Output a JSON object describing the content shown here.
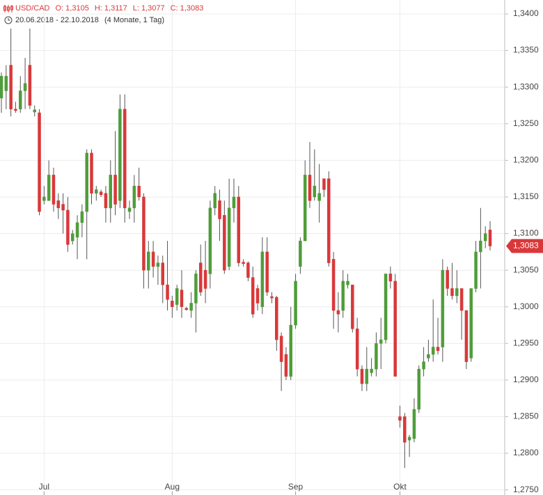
{
  "chart_data": {
    "type": "candlestick",
    "header": [
      "USD/CAD",
      "O: 1,3105",
      "H: 1,3117",
      "L: 1,3077",
      "C: 1,3083"
    ],
    "date_range": "20.06.2018 - 22.10.2018",
    "duration": "(4 Monate, 1 Tag)",
    "up_color": "#4f9d3a",
    "down_color": "#d9383a",
    "grid": true,
    "categories": [
      null,
      null,
      null,
      null,
      null,
      null,
      null,
      null,
      null,
      "Jul",
      null,
      null,
      null,
      null,
      null,
      null,
      null,
      null,
      null,
      null,
      null,
      null,
      null,
      null,
      null,
      null,
      null,
      null,
      null,
      null,
      null,
      null,
      null,
      null,
      null,
      null,
      "Aug",
      null,
      null,
      null,
      null,
      null,
      null,
      null,
      null,
      null,
      null,
      null,
      null,
      null,
      null,
      null,
      null,
      null,
      null,
      null,
      null,
      null,
      null,
      null,
      null,
      null,
      "Sep",
      null,
      null,
      null,
      null,
      null,
      null,
      null,
      null,
      null,
      null,
      null,
      null,
      null,
      null,
      null,
      null,
      null,
      null,
      null,
      null,
      null,
      "Okt",
      null,
      null,
      null,
      null,
      null,
      null,
      null,
      null,
      null,
      null,
      null,
      null,
      null,
      null,
      null,
      null,
      null,
      null,
      null
    ],
    "series": [
      {
        "name": "USD/CAD",
        "open": [
          1.3285,
          1.3295,
          1.333,
          1.327,
          1.327,
          1.3295,
          1.333,
          1.3266,
          1.3265,
          1.3145,
          1.3145,
          1.318,
          1.3145,
          1.314,
          1.3132,
          1.309,
          1.3095,
          1.3115,
          1.313,
          1.321,
          1.3155,
          1.3157,
          1.3155,
          1.3135,
          1.318,
          1.3145,
          1.327,
          1.313,
          1.3135,
          1.3165,
          1.315,
          1.305,
          1.3075,
          1.3055,
          1.306,
          1.303,
          1.3008,
          1.3003,
          1.3023,
          1.2998,
          1.2995,
          1.3005,
          1.306,
          1.305,
          1.3045,
          1.3135,
          1.3145,
          1.3125,
          1.3055,
          1.3135,
          1.315,
          1.3061,
          1.306,
          1.304,
          1.3025,
          1.3,
          1.3075,
          1.3014,
          1.3013,
          1.296,
          1.2935,
          1.2905,
          1.2975,
          1.3055,
          1.309,
          1.318,
          1.315,
          1.3145,
          1.3175,
          1.3175,
          1.3065,
          1.2995,
          1.2995,
          1.303,
          1.303,
          1.297,
          1.2915,
          1.2895,
          1.291,
          1.2915,
          1.295,
          1.2955,
          1.3045,
          1.3035,
          1.285,
          1.285,
          1.2818,
          1.282,
          1.286,
          1.2915,
          1.293,
          1.2935,
          1.2945,
          1.2945,
          1.305,
          1.3025,
          1.3015,
          1.3025,
          1.2995,
          1.293,
          1.3025,
          1.3075,
          1.309,
          1.3105
        ],
        "high": [
          1.332,
          1.333,
          1.338,
          1.328,
          1.3315,
          1.334,
          1.338,
          1.3275,
          1.327,
          1.3165,
          1.32,
          1.319,
          1.3155,
          1.3155,
          1.315,
          1.3105,
          1.3125,
          1.314,
          1.3215,
          1.3215,
          1.3165,
          1.316,
          1.3165,
          1.32,
          1.324,
          1.329,
          1.329,
          1.3145,
          1.318,
          1.319,
          1.3155,
          1.309,
          1.309,
          1.307,
          1.307,
          1.309,
          1.3015,
          1.303,
          1.305,
          1.3,
          1.302,
          1.305,
          1.3085,
          1.309,
          1.3145,
          1.3165,
          1.316,
          1.3145,
          1.3175,
          1.3175,
          1.3165,
          1.3065,
          1.3062,
          1.3055,
          1.303,
          1.3095,
          1.3095,
          1.302,
          1.3015,
          1.2965,
          1.2945,
          1.3,
          1.3045,
          1.3095,
          1.32,
          1.3225,
          1.3215,
          1.3195,
          1.3175,
          1.3185,
          1.3075,
          1.302,
          1.305,
          1.3045,
          1.303,
          1.2985,
          1.292,
          1.2945,
          1.293,
          1.2965,
          1.2985,
          1.3045,
          1.3055,
          1.3045,
          1.2865,
          1.2855,
          1.2825,
          1.2875,
          1.292,
          1.2945,
          1.2955,
          1.301,
          1.2985,
          1.3065,
          1.3055,
          1.306,
          1.305,
          1.3025,
          1.2995,
          1.3025,
          1.309,
          1.3135,
          1.311,
          1.3117
        ],
        "low": [
          1.3265,
          1.327,
          1.326,
          1.3265,
          1.3265,
          1.327,
          1.327,
          1.326,
          1.3125,
          1.314,
          1.3145,
          1.313,
          1.312,
          1.31,
          1.3075,
          1.3085,
          1.3065,
          1.3095,
          1.3065,
          1.314,
          1.3145,
          1.315,
          1.3115,
          1.3115,
          1.3125,
          1.3135,
          1.3115,
          1.312,
          1.3115,
          1.3145,
          1.3025,
          1.3025,
          1.304,
          1.303,
          1.3005,
          1.2995,
          1.2985,
          1.2995,
          1.2985,
          1.2995,
          1.2985,
          1.2965,
          1.3015,
          1.3005,
          1.3025,
          1.3125,
          1.309,
          1.3045,
          1.305,
          1.3115,
          1.3055,
          1.3055,
          1.3035,
          1.2985,
          1.2995,
          1.299,
          1.3015,
          1.3005,
          1.294,
          1.2885,
          1.29,
          1.29,
          1.297,
          1.3045,
          1.309,
          1.3135,
          1.3145,
          1.3115,
          1.315,
          1.3055,
          1.297,
          1.2965,
          1.2985,
          1.3025,
          1.2965,
          1.2905,
          1.2885,
          1.2885,
          1.2905,
          1.2905,
          1.2915,
          1.295,
          1.3025,
          1.2905,
          1.2835,
          1.278,
          1.2795,
          1.2815,
          1.2855,
          1.2905,
          1.2925,
          1.2925,
          1.2935,
          1.2925,
          1.3015,
          1.301,
          1.3005,
          1.2955,
          1.2915,
          1.2925,
          1.302,
          1.3025,
          1.308,
          1.3077
        ],
        "close": [
          1.3315,
          1.3315,
          1.327,
          1.3268,
          1.3295,
          1.3305,
          1.3275,
          1.3269,
          1.313,
          1.315,
          1.318,
          1.314,
          1.3135,
          1.3132,
          1.3085,
          1.31,
          1.3115,
          1.313,
          1.321,
          1.3155,
          1.316,
          1.3153,
          1.3135,
          1.318,
          1.314,
          1.327,
          1.3135,
          1.3135,
          1.3165,
          1.315,
          1.305,
          1.3075,
          1.3055,
          1.306,
          1.303,
          1.301,
          1.3,
          1.3025,
          1.3,
          1.2996,
          1.3005,
          1.3045,
          1.302,
          1.3025,
          1.3135,
          1.3155,
          1.312,
          1.305,
          1.3135,
          1.315,
          1.306,
          1.3059,
          1.304,
          1.299,
          1.3005,
          1.3075,
          1.302,
          1.3012,
          1.2955,
          1.2925,
          1.2905,
          1.2975,
          1.3035,
          1.309,
          1.318,
          1.3145,
          1.3165,
          1.3155,
          1.316,
          1.306,
          1.2995,
          1.299,
          1.3035,
          1.3035,
          1.297,
          1.2915,
          1.2895,
          1.2915,
          1.2915,
          1.295,
          1.2955,
          1.3045,
          1.3035,
          1.2905,
          1.2845,
          1.2815,
          1.2822,
          1.286,
          1.2915,
          1.2925,
          1.2935,
          1.2945,
          1.294,
          1.305,
          1.3025,
          1.3015,
          1.3025,
          1.2995,
          1.2925,
          1.3025,
          1.3075,
          1.309,
          1.31,
          1.3083
        ]
      }
    ],
    "last_price": {
      "value": 1.3083,
      "label": "1,3083"
    },
    "ylim": [
      1.2743,
      1.3419
    ],
    "yticks": [
      {
        "value": 1.275,
        "label": "1,2750"
      },
      {
        "value": 1.28,
        "label": "1,2800"
      },
      {
        "value": 1.285,
        "label": "1,2850"
      },
      {
        "value": 1.29,
        "label": "1,2900"
      },
      {
        "value": 1.295,
        "label": "1,2950"
      },
      {
        "value": 1.3,
        "label": "1,3000"
      },
      {
        "value": 1.305,
        "label": "1,3050"
      },
      {
        "value": 1.31,
        "label": "1,3100"
      },
      {
        "value": 1.315,
        "label": "1,3150"
      },
      {
        "value": 1.32,
        "label": "1,3200"
      },
      {
        "value": 1.325,
        "label": "1,3250"
      },
      {
        "value": 1.33,
        "label": "1,3300"
      },
      {
        "value": 1.335,
        "label": "1,3350"
      },
      {
        "value": 1.34,
        "label": "1,3400"
      }
    ]
  }
}
